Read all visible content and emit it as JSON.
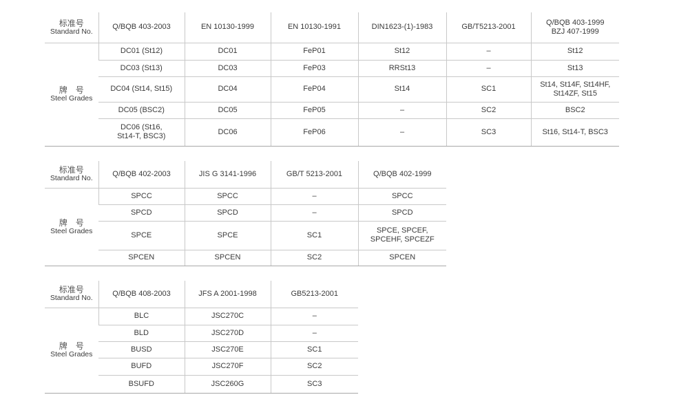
{
  "tables": [
    {
      "header_cn": "标准号",
      "header_en": "Standard No.",
      "grades_cn": "牌　号",
      "grades_en": "Steel Grades",
      "columns": [
        "Q/BQB 403-2003",
        "EN 10130-1999",
        "EN 10130-1991",
        "DIN1623-(1)-1983",
        "GB/T5213-2001",
        "Q/BQB 403-1999\nBZJ 407-1999"
      ],
      "rows": [
        [
          "DC01 (St12)",
          "DC01",
          "FeP01",
          "St12",
          "–",
          "St12"
        ],
        [
          "DC03 (St13)",
          "DC03",
          "FeP03",
          "RRSt13",
          "–",
          "St13"
        ],
        [
          "DC04 (St14, St15)",
          "DC04",
          "FeP04",
          "St14",
          "SC1",
          "St14, St14F, St14HF,\nSt14ZF, St15"
        ],
        [
          "DC05 (BSC2)",
          "DC05",
          "FeP05",
          "–",
          "SC2",
          "BSC2"
        ],
        [
          "DC06 (St16,\nSt14-T, BSC3)",
          "DC06",
          "FeP06",
          "–",
          "SC3",
          "St16, St14-T, BSC3"
        ]
      ]
    },
    {
      "header_cn": "标准号",
      "header_en": "Standard No.",
      "grades_cn": "牌　号",
      "grades_en": "Steel Grades",
      "columns": [
        "Q/BQB 402-2003",
        "JIS G 3141-1996",
        "GB/T 5213-2001",
        "Q/BQB 402-1999"
      ],
      "rows": [
        [
          "SPCC",
          "SPCC",
          "–",
          "SPCC"
        ],
        [
          "SPCD",
          "SPCD",
          "–",
          "SPCD"
        ],
        [
          "SPCE",
          "SPCE",
          "SC1",
          "SPCE, SPCEF,\nSPCEHF, SPCEZF"
        ],
        [
          "SPCEN",
          "SPCEN",
          "SC2",
          "SPCEN"
        ]
      ]
    },
    {
      "header_cn": "标准号",
      "header_en": "Standard No.",
      "grades_cn": "牌　号",
      "grades_en": "Steel Grades",
      "columns": [
        "Q/BQB 408-2003",
        "JFS A 2001-1998",
        "GB5213-2001"
      ],
      "rows": [
        [
          "BLC",
          "JSC270C",
          "–"
        ],
        [
          "BLD",
          "JSC270D",
          "–"
        ],
        [
          "BUSD",
          "JSC270E",
          "SC1"
        ],
        [
          "BUFD",
          "JSC270F",
          "SC2"
        ],
        [
          "BSUFD",
          "JSC260G",
          "SC3"
        ]
      ]
    }
  ]
}
